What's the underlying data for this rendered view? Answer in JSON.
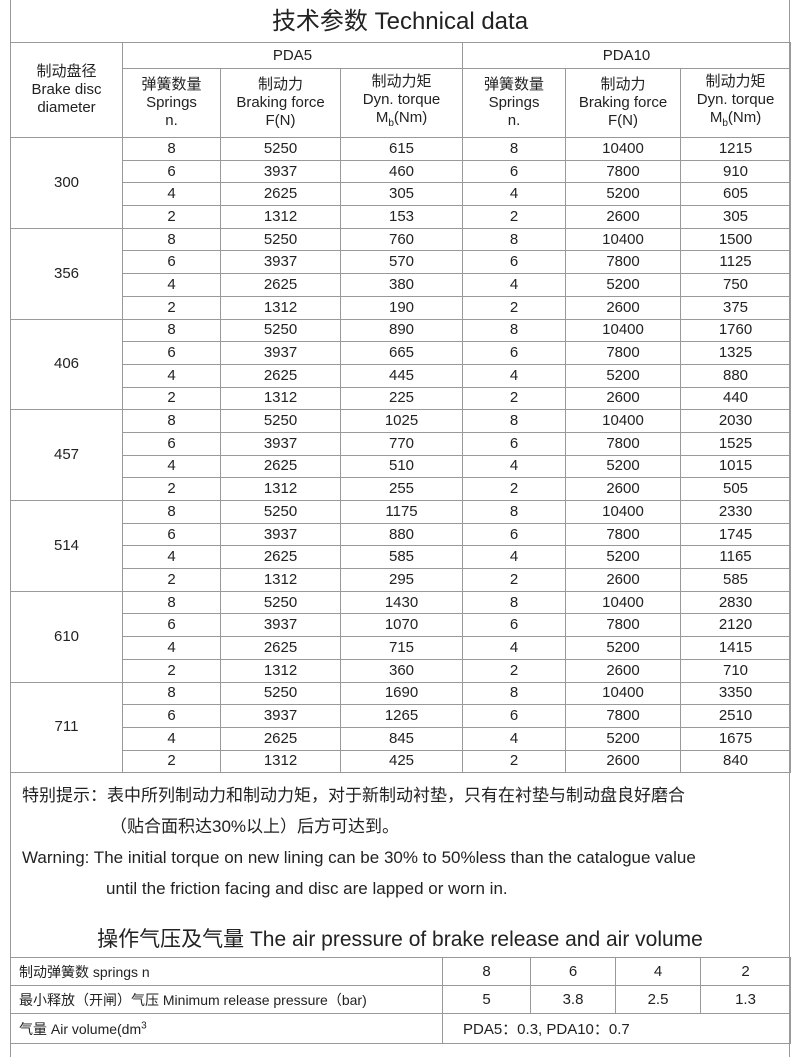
{
  "title": "技术参数   Technical data",
  "header": {
    "diameter": [
      "制动盘径",
      "Brake disc",
      "diameter"
    ],
    "models": [
      "PDA5",
      "PDA10"
    ],
    "springs": [
      "弹簧数量",
      "Springs",
      "n."
    ],
    "force": [
      "制动力",
      "Braking force",
      "F(N)"
    ],
    "torque": [
      "制动力矩",
      "Dyn. torque",
      "M",
      "b",
      "(Nm)"
    ]
  },
  "groups": [
    {
      "d": "300",
      "rows": [
        [
          "8",
          "5250",
          "615",
          "8",
          "10400",
          "1215"
        ],
        [
          "6",
          "3937",
          "460",
          "6",
          "7800",
          "910"
        ],
        [
          "4",
          "2625",
          "305",
          "4",
          "5200",
          "605"
        ],
        [
          "2",
          "1312",
          "153",
          "2",
          "2600",
          "305"
        ]
      ]
    },
    {
      "d": "356",
      "rows": [
        [
          "8",
          "5250",
          "760",
          "8",
          "10400",
          "1500"
        ],
        [
          "6",
          "3937",
          "570",
          "6",
          "7800",
          "1125"
        ],
        [
          "4",
          "2625",
          "380",
          "4",
          "5200",
          "750"
        ],
        [
          "2",
          "1312",
          "190",
          "2",
          "2600",
          "375"
        ]
      ]
    },
    {
      "d": "406",
      "rows": [
        [
          "8",
          "5250",
          "890",
          "8",
          "10400",
          "1760"
        ],
        [
          "6",
          "3937",
          "665",
          "6",
          "7800",
          "1325"
        ],
        [
          "4",
          "2625",
          "445",
          "4",
          "5200",
          "880"
        ],
        [
          "2",
          "1312",
          "225",
          "2",
          "2600",
          "440"
        ]
      ]
    },
    {
      "d": "457",
      "rows": [
        [
          "8",
          "5250",
          "1025",
          "8",
          "10400",
          "2030"
        ],
        [
          "6",
          "3937",
          "770",
          "6",
          "7800",
          "1525"
        ],
        [
          "4",
          "2625",
          "510",
          "4",
          "5200",
          "1015"
        ],
        [
          "2",
          "1312",
          "255",
          "2",
          "2600",
          "505"
        ]
      ]
    },
    {
      "d": "514",
      "rows": [
        [
          "8",
          "5250",
          "1175",
          "8",
          "10400",
          "2330"
        ],
        [
          "6",
          "3937",
          "880",
          "6",
          "7800",
          "1745"
        ],
        [
          "4",
          "2625",
          "585",
          "4",
          "5200",
          "1165"
        ],
        [
          "2",
          "1312",
          "295",
          "2",
          "2600",
          "585"
        ]
      ]
    },
    {
      "d": "610",
      "rows": [
        [
          "8",
          "5250",
          "1430",
          "8",
          "10400",
          "2830"
        ],
        [
          "6",
          "3937",
          "1070",
          "6",
          "7800",
          "2120"
        ],
        [
          "4",
          "2625",
          "715",
          "4",
          "5200",
          "1415"
        ],
        [
          "2",
          "1312",
          "360",
          "2",
          "2600",
          "710"
        ]
      ]
    },
    {
      "d": "711",
      "rows": [
        [
          "8",
          "5250",
          "1690",
          "8",
          "10400",
          "3350"
        ],
        [
          "6",
          "3937",
          "1265",
          "6",
          "7800",
          "2510"
        ],
        [
          "4",
          "2625",
          "845",
          "4",
          "5200",
          "1675"
        ],
        [
          "2",
          "1312",
          "425",
          "2",
          "2600",
          "840"
        ]
      ]
    }
  ],
  "notes": {
    "cn1": "特别提示：表中所列制动力和制动力矩，对于新制动衬垫，只有在衬垫与制动盘良好磨合",
    "cn2": "（贴合面积达30%以上）后方可达到。",
    "en1": "Warning: The initial torque on new lining can be 30% to 50%less than the catalogue value",
    "en2": "until the friction facing and disc are lapped or worn in."
  },
  "air": {
    "title": "操作气压及气量 The air pressure of brake release and air volume",
    "springs_label": "制动弹簧数  springs  n",
    "springs": [
      "8",
      "6",
      "4",
      "2"
    ],
    "pressure_label": "最小释放（开闸）气压 Minimum release pressure（bar)",
    "pressure": [
      "5",
      "3.8",
      "2.5",
      "1.3"
    ],
    "volume_label": "气量  Air volume(dm",
    "volume_sup": "3",
    "volume_value": "PDA5：0.3,     PDA10：0.7"
  }
}
